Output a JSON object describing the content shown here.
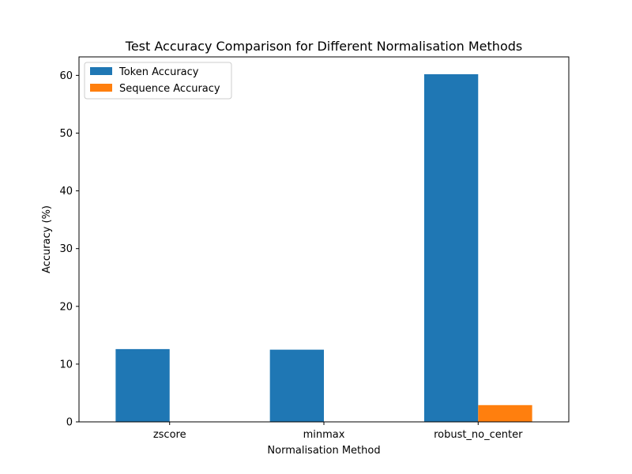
{
  "chart_data": {
    "type": "bar",
    "title": "Test Accuracy Comparison for Different Normalisation Methods",
    "xlabel": "Normalisation Method",
    "ylabel": "Accuracy (%)",
    "categories": [
      "zscore",
      "minmax",
      "robust_no_center"
    ],
    "series": [
      {
        "name": "Token Accuracy",
        "values": [
          12.6,
          12.5,
          60.2
        ],
        "color": "#1f77b4"
      },
      {
        "name": "Sequence Accuracy",
        "values": [
          0.0,
          0.0,
          2.9
        ],
        "color": "#ff7f0e"
      }
    ],
    "ylim": [
      0,
      63.2
    ],
    "yticks": [
      0,
      10,
      20,
      30,
      40,
      50,
      60
    ],
    "legend": "top-left",
    "grid": false
  }
}
